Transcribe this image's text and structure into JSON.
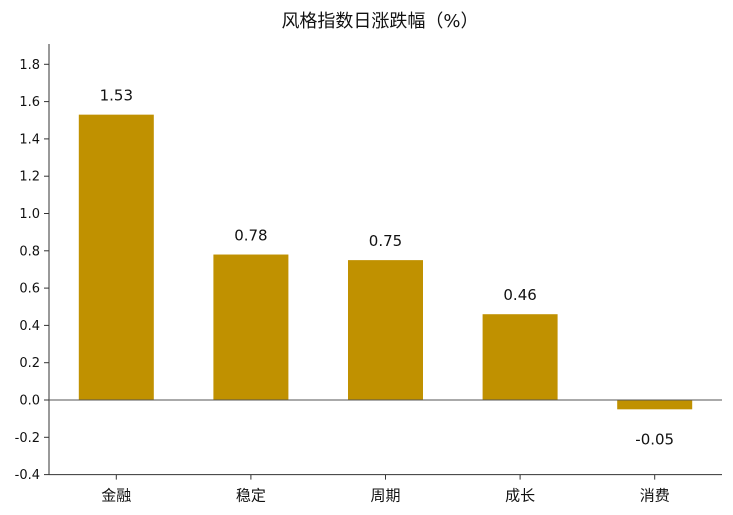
{
  "chart_data": {
    "type": "bar",
    "title": "风格指数日涨跌幅（%）",
    "categories": [
      "金融",
      "稳定",
      "周期",
      "成长",
      "消费"
    ],
    "values": [
      1.53,
      0.78,
      0.75,
      0.46,
      -0.05
    ],
    "data_labels": [
      "1.53",
      "0.78",
      "0.75",
      "0.46",
      "-0.05"
    ],
    "yticks": [
      "-0.4",
      "-0.2",
      "0.0",
      "0.2",
      "0.4",
      "0.6",
      "0.8",
      "1.0",
      "1.2",
      "1.4",
      "1.6",
      "1.8"
    ],
    "ylim": [
      -0.4,
      1.9
    ],
    "bar_color": "#C09100",
    "grid": false,
    "legend": "none"
  }
}
